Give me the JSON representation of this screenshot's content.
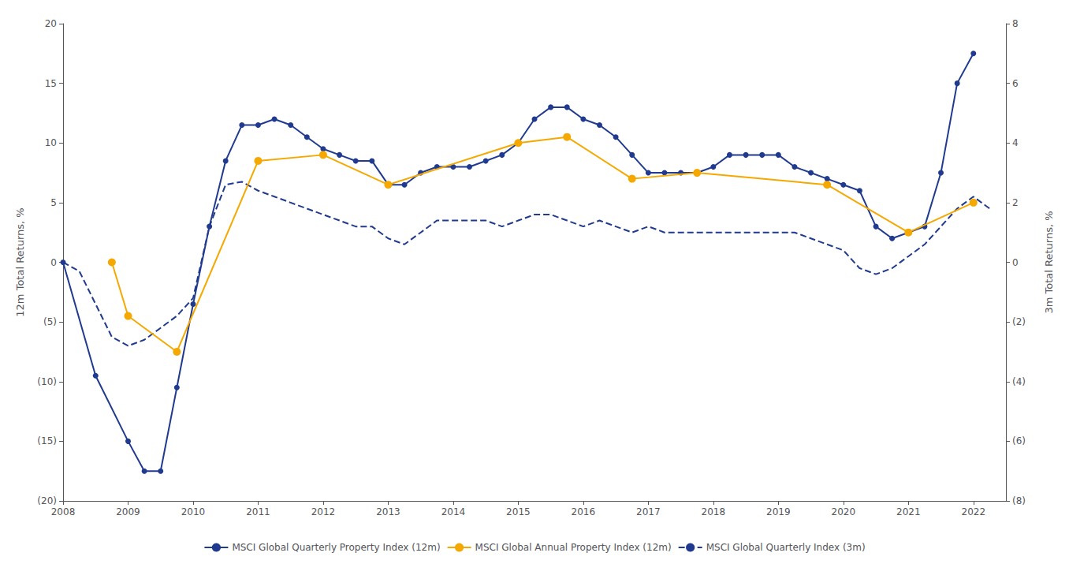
{
  "chart_data": {
    "type": "line",
    "y_label": "12m Total Returns, %",
    "y2_label": "3m Total Returns, %",
    "xlim": [
      2008,
      2022.5
    ],
    "xticks": [
      2008,
      2009,
      2010,
      2011,
      2012,
      2013,
      2014,
      2015,
      2016,
      2017,
      2018,
      2019,
      2020,
      2021,
      2022
    ],
    "ylim": [
      -20,
      20
    ],
    "yticks": [
      {
        "value": -20,
        "label": "(20)"
      },
      {
        "value": -15,
        "label": "(15)"
      },
      {
        "value": -10,
        "label": "(10)"
      },
      {
        "value": -5,
        "label": "(5)"
      },
      0,
      5,
      10,
      15,
      20
    ],
    "y2lim": [
      -8,
      8
    ],
    "y2ticks": [
      {
        "value": -8,
        "label": "(8)"
      },
      {
        "value": -6,
        "label": "(6)"
      },
      {
        "value": -4,
        "label": "(4)"
      },
      {
        "value": -2,
        "label": "(2)"
      },
      0,
      2,
      4,
      6,
      8
    ],
    "grid": false,
    "legend": "bottom",
    "series": [
      {
        "name": "MSCI Global Quarterly Property Index (12m)",
        "color": "#1F3A8F",
        "marker": "circle",
        "line_style": "solid",
        "x": [
          2008.0,
          2008.5,
          2009.0,
          2009.25,
          2009.5,
          2009.75,
          2010.0,
          2010.25,
          2010.5,
          2010.75,
          2011.0,
          2011.25,
          2011.5,
          2011.75,
          2012.0,
          2012.25,
          2012.5,
          2012.75,
          2013.0,
          2013.25,
          2013.5,
          2013.75,
          2014.0,
          2014.25,
          2014.5,
          2014.75,
          2015.0,
          2015.25,
          2015.5,
          2015.75,
          2016.0,
          2016.25,
          2016.5,
          2016.75,
          2017.0,
          2017.25,
          2017.5,
          2017.75,
          2018.0,
          2018.25,
          2018.5,
          2018.75,
          2019.0,
          2019.25,
          2019.5,
          2019.75,
          2020.0,
          2020.25,
          2020.5,
          2020.75,
          2021.0,
          2021.25,
          2021.5,
          2021.75,
          2022.0
        ],
        "values": [
          0.0,
          -9.5,
          -15.0,
          -17.5,
          -17.5,
          -10.5,
          -3.5,
          3.0,
          8.5,
          11.5,
          11.5,
          12.0,
          11.5,
          10.5,
          9.5,
          9.0,
          8.5,
          8.5,
          6.5,
          6.5,
          7.5,
          8.0,
          8.0,
          8.0,
          8.5,
          9.0,
          10.0,
          12.0,
          13.0,
          13.0,
          12.0,
          11.5,
          10.5,
          9.0,
          7.5,
          7.5,
          7.5,
          7.5,
          8.0,
          9.0,
          9.0,
          9.0,
          9.0,
          8.0,
          7.5,
          7.0,
          6.5,
          6.0,
          3.0,
          2.0,
          2.5,
          3.0,
          7.5,
          15.0,
          17.5
        ]
      },
      {
        "name": "MSCI Global Annual Property Index (12m)",
        "color": "#F5A800",
        "marker": "circle",
        "line_style": "solid",
        "x": [
          2008.75,
          2009.0,
          2009.75,
          2011.0,
          2012.0,
          2013.0,
          2015.0,
          2015.75,
          2016.75,
          2017.75,
          2019.75,
          2021.0,
          2022.0
        ],
        "values": [
          0.0,
          -4.5,
          -7.5,
          8.5,
          9.0,
          6.5,
          10.0,
          10.5,
          7.0,
          7.5,
          6.5,
          2.5,
          5.0
        ]
      },
      {
        "name": "MSCI Global Quarterly Index (3m)",
        "color": "#1F3A8F",
        "marker": "none",
        "line_style": "dashed",
        "axis": "y2",
        "x": [
          2008.0,
          2008.25,
          2008.5,
          2008.75,
          2009.0,
          2009.25,
          2009.5,
          2009.75,
          2010.0,
          2010.25,
          2010.5,
          2010.75,
          2011.0,
          2011.25,
          2011.5,
          2011.75,
          2012.0,
          2012.25,
          2012.5,
          2012.75,
          2013.0,
          2013.25,
          2013.5,
          2013.75,
          2014.0,
          2014.25,
          2014.5,
          2014.75,
          2015.0,
          2015.25,
          2015.5,
          2015.75,
          2016.0,
          2016.25,
          2016.5,
          2016.75,
          2017.0,
          2017.25,
          2017.5,
          2017.75,
          2018.0,
          2018.25,
          2018.5,
          2018.75,
          2019.0,
          2019.25,
          2019.5,
          2019.75,
          2020.0,
          2020.25,
          2020.5,
          2020.75,
          2021.0,
          2021.25,
          2021.5,
          2021.75,
          2022.0,
          2022.25
        ],
        "values": [
          0.0,
          -0.3,
          -1.4,
          -2.5,
          -2.8,
          -2.6,
          -2.2,
          -1.8,
          -1.2,
          1.2,
          2.6,
          2.7,
          2.4,
          2.2,
          2.0,
          1.8,
          1.6,
          1.4,
          1.2,
          1.2,
          0.8,
          0.6,
          1.0,
          1.4,
          1.4,
          1.4,
          1.4,
          1.2,
          1.4,
          1.6,
          1.6,
          1.4,
          1.2,
          1.4,
          1.2,
          1.0,
          1.2,
          1.0,
          1.0,
          1.0,
          1.0,
          1.0,
          1.0,
          1.0,
          1.0,
          1.0,
          0.8,
          0.6,
          0.4,
          -0.2,
          -0.4,
          -0.2,
          0.2,
          0.6,
          1.2,
          1.8,
          2.2,
          1.8
        ]
      }
    ]
  }
}
